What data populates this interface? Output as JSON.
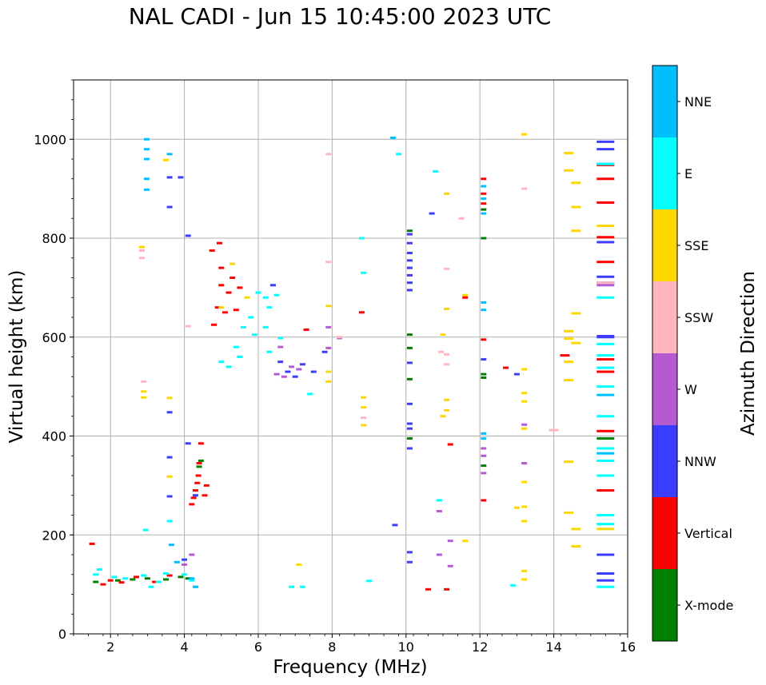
{
  "chart_data": {
    "type": "scatter",
    "title": "NAL CADI - Jun 15 10:45:00 2023 UTC",
    "xlabel": "Frequency (MHz)",
    "ylabel": "Virtual height (km)",
    "xlim": [
      1,
      16
    ],
    "ylim": [
      0,
      1120
    ],
    "xticks": [
      2,
      4,
      6,
      8,
      10,
      12,
      14,
      16
    ],
    "yticks": [
      0,
      200,
      400,
      600,
      800,
      1000
    ],
    "grid": true,
    "colorbar": {
      "label": "Azimuth Direction",
      "entries": [
        {
          "name": "X-mode",
          "color": "#008000"
        },
        {
          "name": "Vertical",
          "color": "#ff0000"
        },
        {
          "name": "NNW",
          "color": "#3c3cff"
        },
        {
          "name": "W",
          "color": "#b45ad2"
        },
        {
          "name": "SSW",
          "color": "#ffb6c1"
        },
        {
          "name": "SSE",
          "color": "#ffd700"
        },
        {
          "name": "E",
          "color": "#00ffff"
        },
        {
          "name": "NNE",
          "color": "#00bfff"
        }
      ]
    },
    "series": [
      {
        "name": "X-mode",
        "points": [
          [
            1.6,
            105
          ],
          [
            2.2,
            108
          ],
          [
            2.6,
            110
          ],
          [
            3.0,
            112
          ],
          [
            3.5,
            110
          ],
          [
            3.9,
            115
          ],
          [
            4.1,
            112
          ],
          [
            4.4,
            338
          ],
          [
            4.45,
            350
          ],
          [
            10.1,
            815
          ],
          [
            10.1,
            605
          ],
          [
            10.1,
            578
          ],
          [
            10.1,
            515
          ],
          [
            10.1,
            395
          ],
          [
            12.1,
            800
          ],
          [
            12.1,
            858
          ],
          [
            12.1,
            525
          ],
          [
            12.1,
            518
          ],
          [
            12.1,
            340
          ],
          [
            15.4,
            395
          ]
        ]
      },
      {
        "name": "Vertical",
        "points": [
          [
            1.5,
            182
          ],
          [
            1.8,
            100
          ],
          [
            2.0,
            108
          ],
          [
            2.3,
            104
          ],
          [
            2.7,
            115
          ],
          [
            3.2,
            105
          ],
          [
            3.6,
            118
          ],
          [
            4.2,
            262
          ],
          [
            4.25,
            275
          ],
          [
            4.3,
            290
          ],
          [
            4.35,
            305
          ],
          [
            4.38,
            320
          ],
          [
            4.4,
            345
          ],
          [
            4.45,
            385
          ],
          [
            4.55,
            280
          ],
          [
            4.6,
            300
          ],
          [
            4.8,
            625
          ],
          [
            4.9,
            660
          ],
          [
            5.0,
            705
          ],
          [
            5.0,
            740
          ],
          [
            5.1,
            650
          ],
          [
            5.2,
            690
          ],
          [
            5.3,
            720
          ],
          [
            5.4,
            655
          ],
          [
            5.5,
            700
          ],
          [
            4.75,
            775
          ],
          [
            4.95,
            790
          ],
          [
            7.3,
            615
          ],
          [
            8.8,
            650
          ],
          [
            10.6,
            90
          ],
          [
            11.1,
            90
          ],
          [
            11.2,
            383
          ],
          [
            11.6,
            680
          ],
          [
            12.1,
            270
          ],
          [
            12.1,
            595
          ],
          [
            12.1,
            890
          ],
          [
            12.1,
            920
          ],
          [
            12.1,
            870
          ],
          [
            12.7,
            538
          ],
          [
            14.3,
            563
          ],
          [
            15.4,
            290
          ],
          [
            15.4,
            410
          ],
          [
            15.4,
            530
          ],
          [
            15.4,
            555
          ],
          [
            15.4,
            752
          ],
          [
            15.4,
            802
          ],
          [
            15.4,
            872
          ],
          [
            15.4,
            920
          ],
          [
            15.4,
            948
          ]
        ]
      },
      {
        "name": "NNW",
        "points": [
          [
            3.6,
            923
          ],
          [
            3.6,
            863
          ],
          [
            3.6,
            448
          ],
          [
            3.6,
            357
          ],
          [
            3.6,
            278
          ],
          [
            3.9,
            923
          ],
          [
            4.1,
            805
          ],
          [
            4.1,
            385
          ],
          [
            4.3,
            280
          ],
          [
            4.0,
            150
          ],
          [
            6.4,
            705
          ],
          [
            6.6,
            550
          ],
          [
            6.8,
            530
          ],
          [
            7.0,
            520
          ],
          [
            7.2,
            545
          ],
          [
            7.5,
            530
          ],
          [
            7.8,
            570
          ],
          [
            9.7,
            220
          ],
          [
            10.1,
            808
          ],
          [
            10.1,
            790
          ],
          [
            10.1,
            770
          ],
          [
            10.1,
            755
          ],
          [
            10.1,
            740
          ],
          [
            10.1,
            725
          ],
          [
            10.1,
            710
          ],
          [
            10.1,
            695
          ],
          [
            10.1,
            548
          ],
          [
            10.1,
            465
          ],
          [
            10.1,
            425
          ],
          [
            10.1,
            415
          ],
          [
            10.1,
            375
          ],
          [
            10.1,
            165
          ],
          [
            10.1,
            145
          ],
          [
            10.7,
            850
          ],
          [
            12.1,
            555
          ],
          [
            13.0,
            525
          ],
          [
            15.4,
            995
          ],
          [
            15.4,
            980
          ],
          [
            15.4,
            950
          ],
          [
            15.4,
            792
          ],
          [
            15.4,
            722
          ],
          [
            15.4,
            710
          ],
          [
            15.4,
            602
          ],
          [
            15.4,
            160
          ],
          [
            15.4,
            122
          ],
          [
            15.4,
            108
          ],
          [
            15.4,
            600
          ]
        ]
      },
      {
        "name": "W",
        "points": [
          [
            4.0,
            140
          ],
          [
            4.2,
            160
          ],
          [
            6.5,
            525
          ],
          [
            6.7,
            520
          ],
          [
            6.9,
            540
          ],
          [
            7.1,
            535
          ],
          [
            6.6,
            580
          ],
          [
            7.9,
            620
          ],
          [
            7.9,
            578
          ],
          [
            8.2,
            598
          ],
          [
            10.9,
            248
          ],
          [
            10.9,
            160
          ],
          [
            11.2,
            188
          ],
          [
            11.2,
            137
          ],
          [
            12.1,
            375
          ],
          [
            12.1,
            360
          ],
          [
            12.1,
            325
          ],
          [
            13.2,
            423
          ],
          [
            13.2,
            345
          ],
          [
            15.4,
            705
          ]
        ]
      },
      {
        "name": "SSW",
        "points": [
          [
            2.85,
            775
          ],
          [
            2.85,
            760
          ],
          [
            2.9,
            510
          ],
          [
            4.1,
            622
          ],
          [
            7.9,
            752
          ],
          [
            7.9,
            970
          ],
          [
            8.2,
            600
          ],
          [
            8.85,
            437
          ],
          [
            10.95,
            570
          ],
          [
            11.1,
            738
          ],
          [
            11.1,
            565
          ],
          [
            11.1,
            545
          ],
          [
            11.5,
            840
          ],
          [
            13.2,
            900
          ],
          [
            14.0,
            412
          ],
          [
            15.4,
            710
          ]
        ]
      },
      {
        "name": "SSE",
        "points": [
          [
            2.85,
            782
          ],
          [
            2.9,
            490
          ],
          [
            2.9,
            478
          ],
          [
            3.6,
            477
          ],
          [
            3.6,
            318
          ],
          [
            3.5,
            958
          ],
          [
            5.0,
            660
          ],
          [
            5.3,
            748
          ],
          [
            5.7,
            680
          ],
          [
            7.1,
            140
          ],
          [
            7.9,
            530
          ],
          [
            7.9,
            510
          ],
          [
            7.9,
            663
          ],
          [
            8.85,
            478
          ],
          [
            8.85,
            458
          ],
          [
            8.85,
            422
          ],
          [
            11.0,
            605
          ],
          [
            11.0,
            440
          ],
          [
            11.1,
            890
          ],
          [
            11.1,
            657
          ],
          [
            11.1,
            473
          ],
          [
            11.1,
            452
          ],
          [
            11.6,
            685
          ],
          [
            11.6,
            188
          ],
          [
            13.0,
            255
          ],
          [
            13.2,
            1010
          ],
          [
            13.2,
            535
          ],
          [
            13.2,
            487
          ],
          [
            13.2,
            470
          ],
          [
            13.2,
            415
          ],
          [
            13.2,
            307
          ],
          [
            13.2,
            257
          ],
          [
            13.2,
            228
          ],
          [
            13.2,
            127
          ],
          [
            13.2,
            110
          ],
          [
            14.4,
            972
          ],
          [
            14.4,
            937
          ],
          [
            14.4,
            612
          ],
          [
            14.4,
            597
          ],
          [
            14.4,
            550
          ],
          [
            14.4,
            513
          ],
          [
            14.4,
            348
          ],
          [
            14.4,
            245
          ],
          [
            14.6,
            912
          ],
          [
            14.6,
            863
          ],
          [
            14.6,
            815
          ],
          [
            14.6,
            648
          ],
          [
            14.6,
            588
          ],
          [
            14.6,
            212
          ],
          [
            14.6,
            177
          ],
          [
            15.4,
            825
          ],
          [
            15.4,
            212
          ]
        ]
      },
      {
        "name": "E",
        "points": [
          [
            1.6,
            120
          ],
          [
            1.7,
            130
          ],
          [
            2.1,
            115
          ],
          [
            2.4,
            112
          ],
          [
            2.9,
            118
          ],
          [
            2.95,
            210
          ],
          [
            3.1,
            95
          ],
          [
            3.3,
            105
          ],
          [
            3.5,
            122
          ],
          [
            3.6,
            228
          ],
          [
            4.0,
            120
          ],
          [
            4.2,
            108
          ],
          [
            4.3,
            95
          ],
          [
            5.0,
            550
          ],
          [
            5.2,
            540
          ],
          [
            5.4,
            580
          ],
          [
            5.5,
            560
          ],
          [
            5.6,
            620
          ],
          [
            5.8,
            640
          ],
          [
            5.9,
            605
          ],
          [
            6.0,
            690
          ],
          [
            6.2,
            680
          ],
          [
            6.3,
            660
          ],
          [
            6.5,
            685
          ],
          [
            6.3,
            570
          ],
          [
            6.2,
            620
          ],
          [
            6.6,
            598
          ],
          [
            6.9,
            95
          ],
          [
            7.2,
            95
          ],
          [
            7.4,
            485
          ],
          [
            8.8,
            800
          ],
          [
            8.85,
            730
          ],
          [
            9.0,
            107
          ],
          [
            9.8,
            970
          ],
          [
            10.9,
            270
          ],
          [
            10.8,
            935
          ],
          [
            15.4,
            950
          ],
          [
            15.4,
            680
          ],
          [
            15.4,
            586
          ],
          [
            15.4,
            563
          ],
          [
            15.4,
            538
          ],
          [
            15.4,
            500
          ],
          [
            15.4,
            440
          ],
          [
            15.4,
            375
          ],
          [
            15.4,
            350
          ],
          [
            15.4,
            320
          ],
          [
            15.4,
            240
          ],
          [
            15.4,
            222
          ],
          [
            15.4,
            95
          ],
          [
            12.9,
            98
          ]
        ]
      },
      {
        "name": "NNE",
        "points": [
          [
            2.98,
            1000
          ],
          [
            2.98,
            980
          ],
          [
            2.98,
            960
          ],
          [
            2.98,
            920
          ],
          [
            2.98,
            898
          ],
          [
            3.65,
            180
          ],
          [
            3.6,
            970
          ],
          [
            4.3,
            95
          ],
          [
            4.2,
            112
          ],
          [
            3.8,
            145
          ],
          [
            9.65,
            1003
          ],
          [
            12.1,
            670
          ],
          [
            12.1,
            655
          ],
          [
            12.1,
            405
          ],
          [
            12.1,
            395
          ],
          [
            12.1,
            905
          ],
          [
            12.1,
            880
          ],
          [
            12.1,
            850
          ],
          [
            15.4,
            483
          ],
          [
            15.4,
            365
          ]
        ]
      }
    ]
  }
}
